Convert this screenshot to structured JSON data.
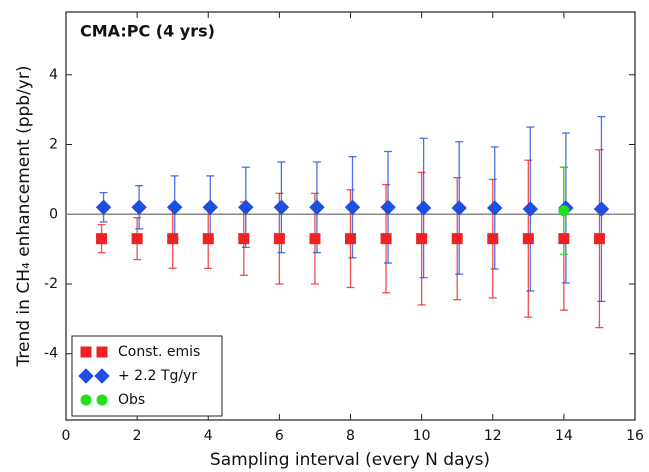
{
  "chart_data": {
    "type": "errorbar",
    "title": "CMA:PC (4 yrs)",
    "x_label": "Sampling interval (every N days)",
    "y_label": "Trend in CH₄ enhancement (ppb/yr)",
    "xlim": [
      0,
      16
    ],
    "ylim": [
      -5.9,
      5.8
    ],
    "xticks": [
      0,
      2,
      4,
      6,
      8,
      10,
      12,
      14,
      16
    ],
    "yticks": [
      -4,
      -2,
      0,
      2,
      4
    ],
    "hline": 0,
    "legend": "lower left",
    "series": [
      {
        "name": "Const. emis",
        "color": "#ee2222",
        "marker": "square",
        "x": [
          1,
          2,
          3,
          4,
          5,
          6,
          7,
          8,
          9,
          10,
          11,
          12,
          13,
          14,
          15
        ],
        "values": [
          -0.7,
          -0.7,
          -0.7,
          -0.7,
          -0.7,
          -0.7,
          -0.7,
          -0.7,
          -0.7,
          -0.7,
          -0.7,
          -0.7,
          -0.7,
          -0.7,
          -0.7
        ],
        "errors": [
          0.4,
          0.6,
          0.85,
          0.85,
          1.05,
          1.3,
          1.3,
          1.4,
          1.55,
          1.9,
          1.75,
          1.7,
          2.25,
          2.05,
          2.55
        ]
      },
      {
        "name": "+ 2.2 Tg/yr",
        "color": "#1f4fe0",
        "marker": "diamond",
        "x": [
          1,
          2,
          3,
          4,
          5,
          6,
          7,
          8,
          9,
          10,
          11,
          12,
          13,
          14,
          15
        ],
        "values": [
          0.2,
          0.2,
          0.2,
          0.2,
          0.2,
          0.2,
          0.2,
          0.2,
          0.2,
          0.18,
          0.18,
          0.18,
          0.15,
          0.18,
          0.15
        ],
        "errors": [
          0.42,
          0.62,
          0.9,
          0.9,
          1.15,
          1.3,
          1.3,
          1.45,
          1.6,
          2.0,
          1.9,
          1.75,
          2.35,
          2.15,
          2.65
        ]
      },
      {
        "name": "Obs",
        "color": "#22dd22",
        "marker": "circle",
        "x": [
          14
        ],
        "values": [
          0.1
        ],
        "errors": [
          1.25
        ]
      }
    ]
  }
}
